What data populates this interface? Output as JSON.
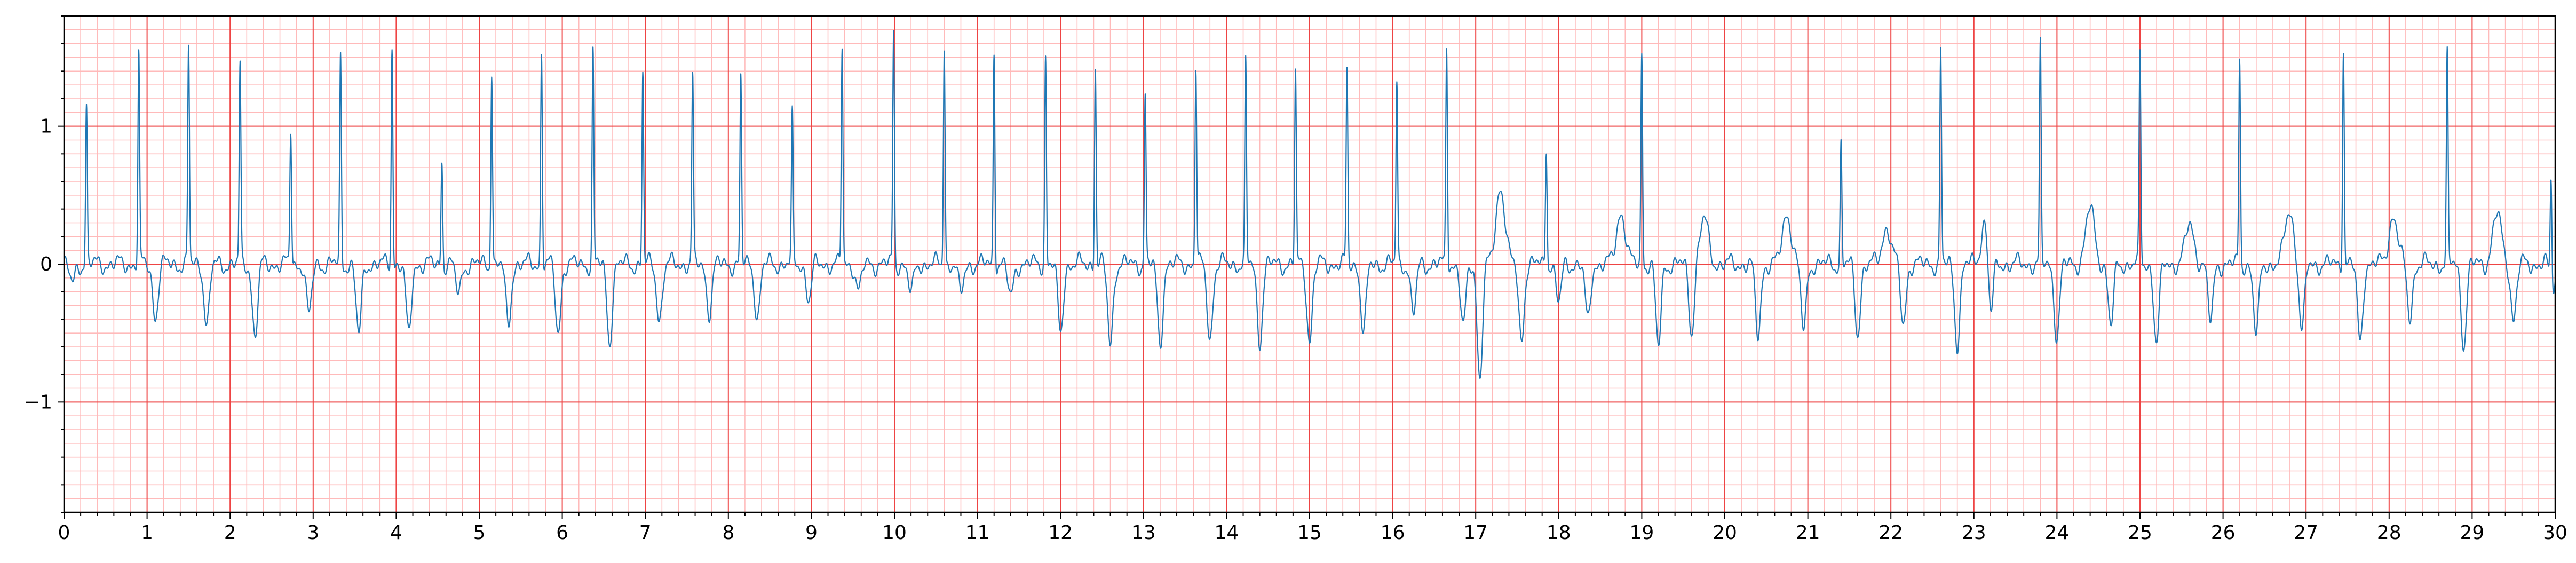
{
  "chart_data": {
    "type": "line",
    "title": "",
    "xlabel": "",
    "ylabel": "",
    "xlim": [
      0,
      30
    ],
    "ylim": [
      -1.8,
      1.8
    ],
    "grid": "on",
    "x_ticks": [
      "0",
      "1",
      "2",
      "3",
      "4",
      "5",
      "6",
      "7",
      "8",
      "9",
      "10",
      "11",
      "12",
      "13",
      "14",
      "15",
      "16",
      "17",
      "18",
      "19",
      "20",
      "21",
      "22",
      "23",
      "24",
      "25",
      "26",
      "27",
      "28",
      "29",
      "30"
    ],
    "y_ticks": [
      "−1",
      "0",
      "1"
    ],
    "series": [
      {
        "r_peaks": [
          [
            0.27,
            1.15
          ],
          [
            0.9,
            1.52
          ],
          [
            1.5,
            1.57
          ],
          [
            2.12,
            1.43
          ],
          [
            2.73,
            0.97
          ],
          [
            3.33,
            1.49
          ],
          [
            3.95,
            1.58
          ],
          [
            4.55,
            0.76
          ],
          [
            5.15,
            1.42
          ],
          [
            5.75,
            1.54
          ],
          [
            6.37,
            1.54
          ],
          [
            6.97,
            1.39
          ],
          [
            7.57,
            1.35
          ],
          [
            8.15,
            1.34
          ],
          [
            8.77,
            1.06
          ],
          [
            9.37,
            1.57
          ],
          [
            9.99,
            1.69
          ],
          [
            10.6,
            1.59
          ],
          [
            11.2,
            1.55
          ],
          [
            11.82,
            1.51
          ],
          [
            12.42,
            1.45
          ],
          [
            13.02,
            1.23
          ],
          [
            13.63,
            1.43
          ],
          [
            14.23,
            1.44
          ],
          [
            14.83,
            1.39
          ],
          [
            15.45,
            1.39
          ],
          [
            16.05,
            1.32
          ],
          [
            16.65,
            1.57
          ],
          [
            17.85,
            0.86
          ],
          [
            19.0,
            1.53
          ],
          [
            21.4,
            0.88
          ],
          [
            22.6,
            1.55
          ],
          [
            23.8,
            1.57
          ],
          [
            25.0,
            1.51
          ],
          [
            26.2,
            1.48
          ],
          [
            27.45,
            1.58
          ],
          [
            28.7,
            1.5
          ],
          [
            29.95,
            0.75
          ]
        ],
        "wide_complexes": [
          [
            17.3,
            0.57
          ],
          [
            18.75,
            0.38
          ],
          [
            19.75,
            0.32
          ],
          [
            20.75,
            0.37
          ],
          [
            21.95,
            0.27
          ],
          [
            23.15,
            0.38
          ],
          [
            24.4,
            0.4
          ],
          [
            25.6,
            0.28
          ],
          [
            26.8,
            0.39
          ],
          [
            28.05,
            0.35
          ],
          [
            29.3,
            0.36
          ]
        ],
        "troughs": [
          [
            0.1,
            -0.15
          ],
          [
            1.1,
            -0.38
          ],
          [
            1.72,
            -0.44
          ],
          [
            2.3,
            -0.52
          ],
          [
            2.95,
            -0.38
          ],
          [
            3.55,
            -0.52
          ],
          [
            4.15,
            -0.52
          ],
          [
            4.75,
            -0.22
          ],
          [
            5.35,
            -0.44
          ],
          [
            5.95,
            -0.5
          ],
          [
            6.57,
            -0.55
          ],
          [
            7.17,
            -0.4
          ],
          [
            7.77,
            -0.34
          ],
          [
            8.35,
            -0.38
          ],
          [
            8.97,
            -0.25
          ],
          [
            9.57,
            -0.2
          ],
          [
            10.2,
            -0.22
          ],
          [
            10.8,
            -0.22
          ],
          [
            11.4,
            -0.25
          ],
          [
            12.0,
            -0.5
          ],
          [
            12.6,
            -0.58
          ],
          [
            13.2,
            -0.57
          ],
          [
            13.8,
            -0.54
          ],
          [
            14.4,
            -0.55
          ],
          [
            15.0,
            -0.55
          ],
          [
            15.65,
            -0.5
          ],
          [
            16.25,
            -0.37
          ],
          [
            16.85,
            -0.47
          ],
          [
            17.05,
            -0.81
          ],
          [
            17.55,
            -0.55
          ],
          [
            18.0,
            -0.28
          ],
          [
            18.35,
            -0.42
          ],
          [
            19.2,
            -0.6
          ],
          [
            19.6,
            -0.48
          ],
          [
            20.4,
            -0.52
          ],
          [
            20.95,
            -0.48
          ],
          [
            21.6,
            -0.5
          ],
          [
            22.15,
            -0.44
          ],
          [
            22.8,
            -0.57
          ],
          [
            23.2,
            -0.58
          ],
          [
            24.0,
            -0.52
          ],
          [
            24.65,
            -0.45
          ],
          [
            25.2,
            -0.57
          ],
          [
            25.85,
            -0.42
          ],
          [
            26.4,
            -0.52
          ],
          [
            26.95,
            -0.5
          ],
          [
            27.65,
            -0.57
          ],
          [
            28.25,
            -0.38
          ],
          [
            28.9,
            -0.57
          ],
          [
            29.5,
            -0.4
          ],
          [
            29.97,
            -0.18
          ]
        ]
      }
    ]
  },
  "colors": {
    "signal": "#1f77b4",
    "major_grid": "#ee4444",
    "minor_grid": "#ffbaba",
    "axes": "#000000",
    "background": "#ffffff"
  }
}
